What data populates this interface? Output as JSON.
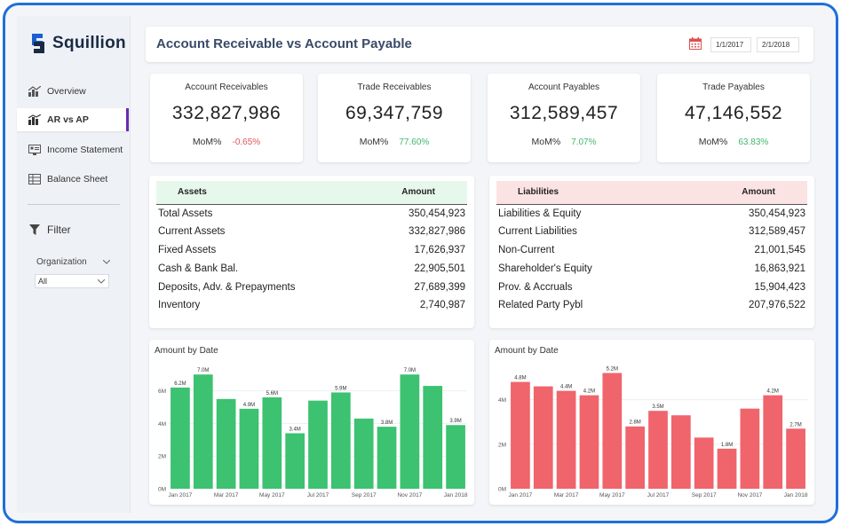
{
  "brand": {
    "name": "Squillion"
  },
  "nav": [
    {
      "label": "Overview",
      "icon": "overview-chart-icon",
      "active": false
    },
    {
      "label": "AR vs AP",
      "icon": "ar-ap-chart-icon",
      "active": true
    },
    {
      "label": "Income Statement",
      "icon": "income-statement-icon",
      "active": false
    },
    {
      "label": "Balance Sheet",
      "icon": "balance-sheet-icon",
      "active": false
    }
  ],
  "filter": {
    "title": "Filter",
    "organization_label": "Organization",
    "organization_value": "All"
  },
  "header": {
    "title": "Account Receivable vs Account Payable",
    "date_from": "1/1/2017",
    "date_to": "2/1/2018"
  },
  "kpis": [
    {
      "title": "Account Receivables",
      "value": "332,827,986",
      "mom_label": "MoM%",
      "mom_value": "-0.65%",
      "trend": "negative"
    },
    {
      "title": "Trade Receivables",
      "value": "69,347,759",
      "mom_label": "MoM%",
      "mom_value": "77.60%",
      "trend": "positive"
    },
    {
      "title": "Account Payables",
      "value": "312,589,457",
      "mom_label": "MoM%",
      "mom_value": "7.07%",
      "trend": "positive"
    },
    {
      "title": "Trade Payables",
      "value": "47,146,552",
      "mom_label": "MoM%",
      "mom_value": "63.83%",
      "trend": "positive"
    }
  ],
  "assets_table": {
    "headers": [
      "Assets",
      "Amount"
    ],
    "header_color": "#e6f8ec",
    "rows": [
      [
        "Total Assets",
        "350,454,923"
      ],
      [
        "Current Assets",
        "332,827,986"
      ],
      [
        "Fixed Assets",
        "17,626,937"
      ],
      [
        "Cash & Bank Bal.",
        "22,905,501"
      ],
      [
        "Deposits, Adv. & Prepayments",
        "27,689,399"
      ],
      [
        "Inventory",
        "2,740,987"
      ]
    ]
  },
  "liabilities_table": {
    "headers": [
      "Liabilities",
      "Amount"
    ],
    "header_color": "#fbe3e4",
    "rows": [
      [
        "Liabilities & Equity",
        "350,454,923"
      ],
      [
        "Current Liabilities",
        "312,589,457"
      ],
      [
        "Non-Current",
        "21,001,545"
      ],
      [
        "Shareholder's Equity",
        "16,863,921"
      ],
      [
        "Prov. & Accruals",
        "15,904,423"
      ],
      [
        "Related Party Pybl",
        "207,976,522"
      ]
    ]
  },
  "chart_data": [
    {
      "type": "bar",
      "title": "Amount by Date",
      "color": "#3cc270",
      "x": [
        "2017-01",
        "2017-02",
        "2017-03",
        "2017-04",
        "2017-05",
        "2017-06",
        "2017-07",
        "2017-08",
        "2017-09",
        "2017-10",
        "2017-11",
        "2017-12",
        "2018-01"
      ],
      "values": [
        6.2,
        7.0,
        5.5,
        4.9,
        5.6,
        3.4,
        5.4,
        5.9,
        4.3,
        3.8,
        7.0,
        6.3,
        3.9
      ],
      "data_labels": [
        "6.2M",
        "7.0M",
        "",
        "4.9M",
        "5.6M",
        "3.4M",
        "",
        "5.9M",
        "",
        "3.8M",
        "7.0M",
        "",
        "3.9M"
      ],
      "x_tick_labels": [
        "Jan 2017",
        "Mar 2017",
        "May 2017",
        "Jul 2017",
        "Sep 2017",
        "Nov 2017",
        "Jan 2018"
      ],
      "y_ticks": [
        0,
        2,
        4,
        6
      ],
      "y_tick_labels": [
        "0M",
        "2M",
        "4M",
        "6M"
      ],
      "ylim": [
        0,
        7.5
      ]
    },
    {
      "type": "bar",
      "title": "Amount by Date",
      "color": "#f0646c",
      "x": [
        "2017-01",
        "2017-02",
        "2017-03",
        "2017-04",
        "2017-05",
        "2017-06",
        "2017-07",
        "2017-08",
        "2017-09",
        "2017-10",
        "2017-11",
        "2017-12",
        "2018-01"
      ],
      "values": [
        4.8,
        4.6,
        4.4,
        4.2,
        5.2,
        2.8,
        3.5,
        3.3,
        2.3,
        1.8,
        3.6,
        4.2,
        2.7
      ],
      "data_labels": [
        "4.8M",
        "",
        "4.4M",
        "4.2M",
        "5.2M",
        "2.8M",
        "3.5M",
        "",
        "",
        "1.8M",
        "",
        "4.2M",
        "2.7M"
      ],
      "x_tick_labels": [
        "Jan 2017",
        "Mar 2017",
        "May 2017",
        "Jul 2017",
        "Sep 2017",
        "Nov 2017",
        "Jan 2018"
      ],
      "y_ticks": [
        0,
        2,
        4
      ],
      "y_tick_labels": [
        "0M",
        "2M",
        "4M"
      ],
      "ylim": [
        0,
        5.5
      ]
    }
  ]
}
